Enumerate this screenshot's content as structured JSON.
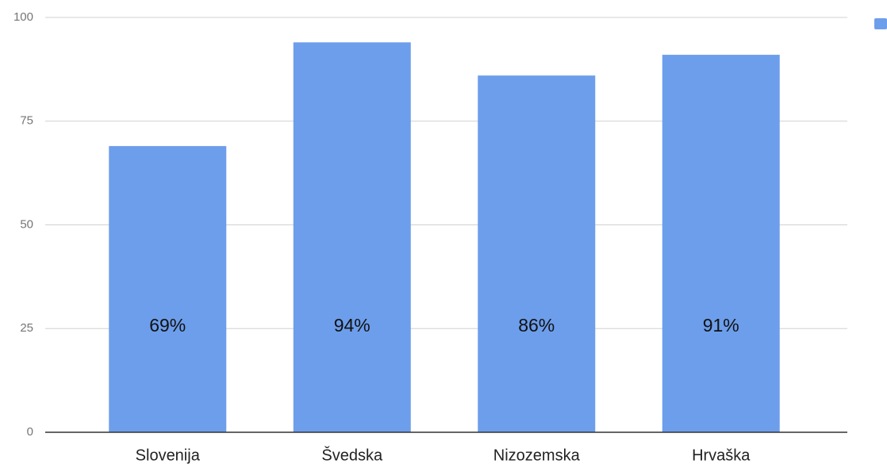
{
  "chart_data": {
    "type": "bar",
    "categories": [
      "Slovenija",
      "Švedska",
      "Nizozemska",
      "Hrvaška"
    ],
    "values": [
      69,
      94,
      86,
      91
    ],
    "value_labels": [
      "69%",
      "94%",
      "86%",
      "91%"
    ],
    "color": "#6d9eeb",
    "ylim": [
      0,
      100
    ],
    "yticks": [
      0,
      25,
      50,
      75,
      100
    ],
    "grid": true
  }
}
